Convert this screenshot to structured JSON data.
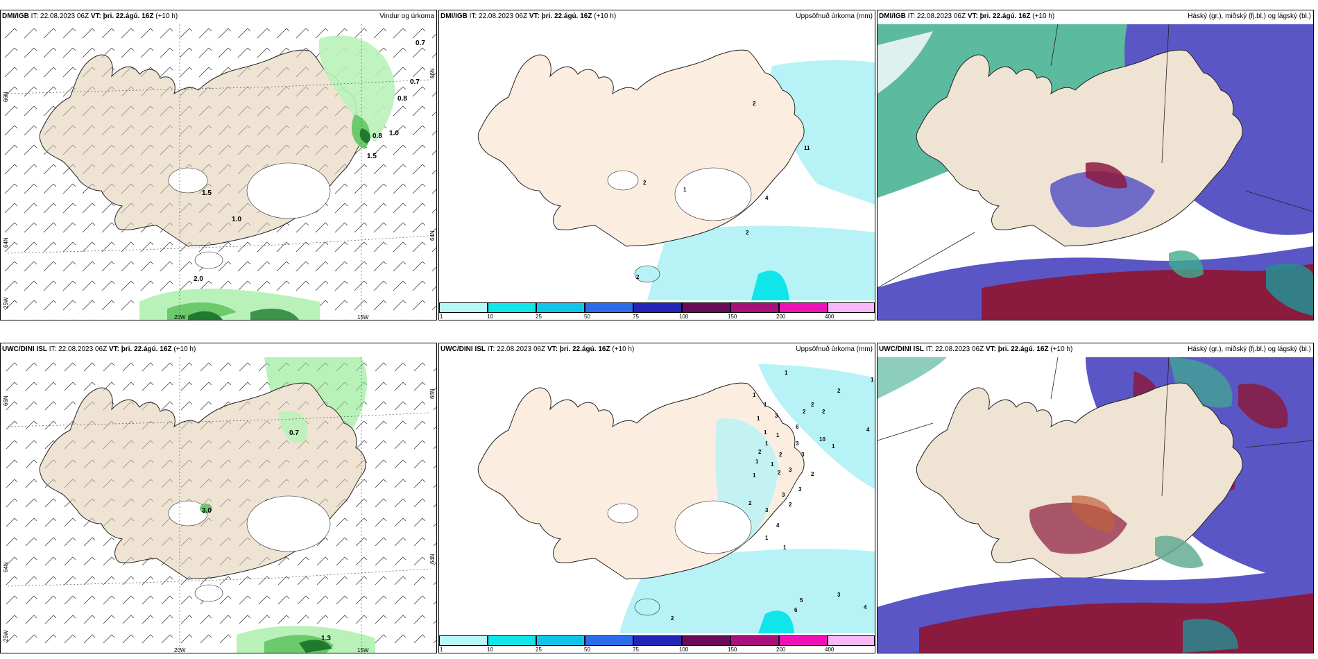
{
  "colors": {
    "land": "#efe3d3",
    "precip_light": "#b7f3f6",
    "green_light": "#b9f2b9",
    "green_mid": "#6cc96c",
    "green_dark": "#1f7a2f",
    "high_cloud": "#3fae8d",
    "mid_cloud": "#5b56c5",
    "low_cloud": "#8b1a3f"
  },
  "panels": [
    {
      "model": "DMI/IGB",
      "it_label": "IT:",
      "it_value": "22.08.2023 06Z",
      "vt_label": "VT:",
      "vt_value": "þri. 22.ágú. 16Z",
      "lead": "(+10 h)",
      "field": "Vindur og úrkoma",
      "values": [
        "0.7",
        "0.7",
        "0.8",
        "1.0",
        "0.8",
        "1.5",
        "1.5",
        "1.0",
        "2.0"
      ],
      "lon_labels": [
        "20W",
        "15W"
      ],
      "lat_labels": [
        "66N",
        "64N",
        "25W",
        "66N",
        "64N"
      ]
    },
    {
      "model": "DMI/IGB",
      "it_label": "IT:",
      "it_value": "22.08.2023 06Z",
      "vt_label": "VT:",
      "vt_value": "þri. 22.ágú. 16Z",
      "lead": "(+10 h)",
      "field": "Uppsöfnuð úrkoma (mm)",
      "numbers": [
        "2",
        "11",
        "2",
        "1",
        "4",
        "2",
        "2"
      ]
    },
    {
      "model": "DMI/IGB",
      "it_label": "IT:",
      "it_value": "22.08.2023 06Z",
      "vt_label": "VT:",
      "vt_value": "þri. 22.ágú. 16Z",
      "lead": "(+10 h)",
      "field": "Háský (gr.), miðský (fj.bl.) og lágský (bl.)"
    },
    {
      "model": "UWC/DINI ISL",
      "it_label": "IT:",
      "it_value": "22.08.2023 06Z",
      "vt_label": "VT:",
      "vt_value": "þri. 22.ágú. 16Z",
      "lead": "(+10 h)",
      "field": "",
      "values": [
        "0.7",
        "3.0",
        "1.3"
      ],
      "lon_labels": [
        "20W",
        "15W"
      ],
      "lat_labels": [
        "66N",
        "64N",
        "25W",
        "66N",
        "64N"
      ]
    },
    {
      "model": "UWC/DINI ISL",
      "it_label": "IT:",
      "it_value": "22.08.2023 06Z",
      "vt_label": "VT:",
      "vt_value": "þri. 22.ágú. 16Z",
      "lead": "(+10 h)",
      "field": "Uppsöfnuð úrkoma (mm)",
      "numbers": [
        "1",
        "1",
        "1",
        "2",
        "2",
        "1",
        "3",
        "2",
        "2",
        "1",
        "6",
        "4",
        "1",
        "1",
        "3",
        "10",
        "1",
        "1",
        "2",
        "2",
        "3",
        "1",
        "1",
        "1",
        "2",
        "3",
        "2",
        "3",
        "3",
        "2",
        "2",
        "3",
        "4",
        "3",
        "5",
        "6",
        "4",
        "2",
        "1",
        "1"
      ]
    },
    {
      "model": "UWC/DINI ISL",
      "it_label": "IT:",
      "it_value": "22.08.2023 06Z",
      "vt_label": "VT:",
      "vt_value": "þri. 22.ágú. 16Z",
      "lead": "(+10 h)",
      "field": "Háský (gr.), miðský (fj.bl.) og lágský (bl.)"
    }
  ],
  "colorbar": {
    "ticks": [
      "1",
      "10",
      "25",
      "50",
      "75",
      "100",
      "150",
      "200",
      "400"
    ],
    "colors": [
      "#b7f7f8",
      "#10e6ea",
      "#10c4ea",
      "#2b6cea",
      "#2424b8",
      "#6a0a5a",
      "#a8107a",
      "#f010b8",
      "#f6b8f6"
    ]
  }
}
